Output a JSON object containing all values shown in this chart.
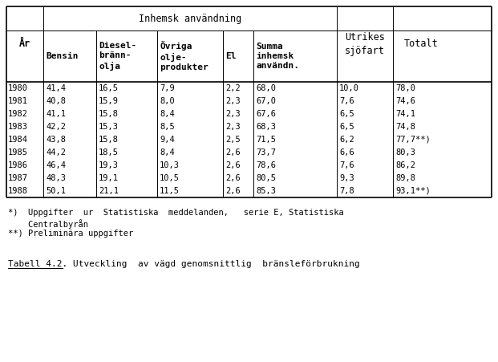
{
  "years": [
    "1980",
    "1981",
    "1982",
    "1983",
    "1984",
    "1985",
    "1986",
    "1987",
    "1988"
  ],
  "bensin": [
    "41,4",
    "40,8",
    "41,1",
    "42,2",
    "43,8",
    "44,2",
    "46,4",
    "48,3",
    "50,1"
  ],
  "diesel": [
    "16,5",
    "15,9",
    "15,8",
    "15,3",
    "15,8",
    "18,5",
    "19,3",
    "19,1",
    "21,1"
  ],
  "ovriga": [
    "7,9",
    "8,0",
    "8,4",
    "8,5",
    "9,4",
    "8,4",
    "10,3",
    "10,5",
    "11,5"
  ],
  "el": [
    "2,2",
    "2,3",
    "2,3",
    "2,3",
    "2,5",
    "2,6",
    "2,6",
    "2,6",
    "2,6"
  ],
  "summa": [
    "68,0",
    "67,0",
    "67,6",
    "68,3",
    "71,5",
    "73,7",
    "78,6",
    "80,5",
    "85,3"
  ],
  "utrikes": [
    "10,0",
    "7,6",
    "6,5",
    "6,5",
    "6,2",
    "6,6",
    "7,6",
    "9,3",
    "7,8"
  ],
  "totalt": [
    "78,0",
    "74,6",
    "74,1",
    "74,8",
    "77,7**)",
    "80,3",
    "86,2",
    "89,8",
    "93,1**)"
  ],
  "footnote1a": "*)  Uppgifter  ur  Statistiska  meddelanden,   serie E, Statistiska",
  "footnote1b": "    Centralbyrån",
  "footnote2": "**) Preliminära uppgifter",
  "tabell42": "Tabell 4.2. Utveckling  av vägd genomsnittlig  bränsleförbrukning",
  "bg_color": "#ffffff"
}
